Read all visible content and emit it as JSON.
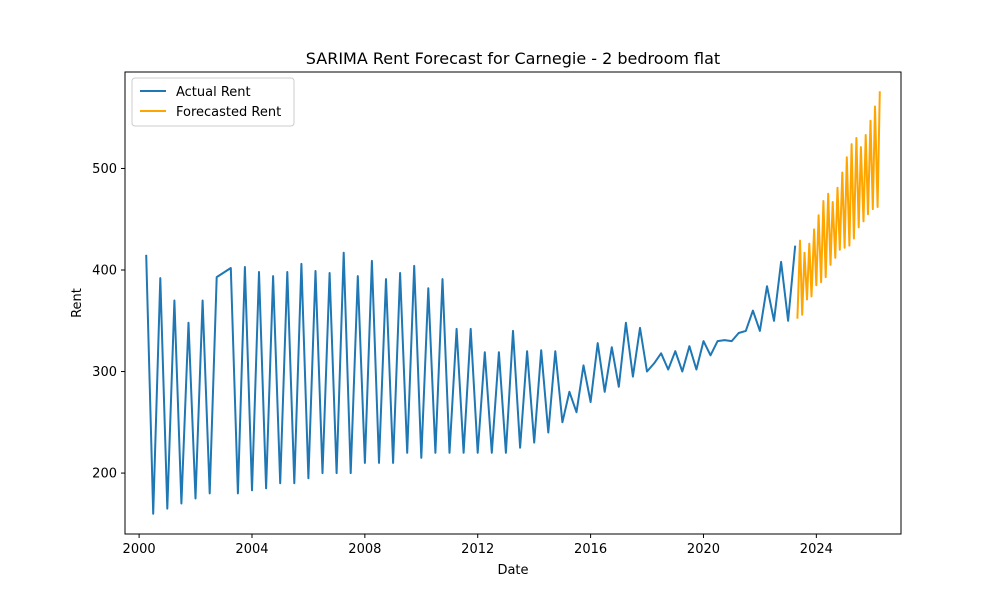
{
  "chart_data": {
    "type": "line",
    "title": "SARIMA Rent Forecast for Carnegie - 2 bedroom flat",
    "xlabel": "Date",
    "ylabel": "Rent",
    "xlim": [
      1999.5,
      2027.0
    ],
    "ylim": [
      140,
      595
    ],
    "x_ticks": [
      2000,
      2004,
      2008,
      2012,
      2016,
      2020,
      2024
    ],
    "x_tick_labels": [
      "2000",
      "2004",
      "2008",
      "2012",
      "2016",
      "2020",
      "2024"
    ],
    "y_ticks": [
      200,
      300,
      400,
      500
    ],
    "y_tick_labels": [
      "200",
      "300",
      "400",
      "500"
    ],
    "grid": false,
    "legend_position": "top-left",
    "series": [
      {
        "name": "Actual Rent",
        "color": "#1f77b4",
        "points": [
          [
            2000.25,
            415
          ],
          [
            2000.5,
            160
          ],
          [
            2000.75,
            392
          ],
          [
            2001.0,
            165
          ],
          [
            2001.25,
            370
          ],
          [
            2001.5,
            170
          ],
          [
            2001.75,
            348
          ],
          [
            2002.0,
            175
          ],
          [
            2002.25,
            370
          ],
          [
            2002.5,
            180
          ],
          [
            2002.75,
            393
          ],
          [
            2003.25,
            402
          ],
          [
            2003.5,
            180
          ],
          [
            2003.75,
            403
          ],
          [
            2004.0,
            183
          ],
          [
            2004.25,
            398
          ],
          [
            2004.5,
            185
          ],
          [
            2004.75,
            394
          ],
          [
            2005.0,
            190
          ],
          [
            2005.25,
            398
          ],
          [
            2005.5,
            190
          ],
          [
            2005.75,
            406
          ],
          [
            2006.0,
            195
          ],
          [
            2006.25,
            399
          ],
          [
            2006.5,
            200
          ],
          [
            2006.75,
            397
          ],
          [
            2007.0,
            200
          ],
          [
            2007.25,
            417
          ],
          [
            2007.5,
            200
          ],
          [
            2007.75,
            394
          ],
          [
            2008.0,
            210
          ],
          [
            2008.25,
            409
          ],
          [
            2008.5,
            210
          ],
          [
            2008.75,
            391
          ],
          [
            2009.0,
            210
          ],
          [
            2009.25,
            397
          ],
          [
            2009.5,
            220
          ],
          [
            2009.75,
            404
          ],
          [
            2010.0,
            215
          ],
          [
            2010.25,
            382
          ],
          [
            2010.5,
            220
          ],
          [
            2010.75,
            391
          ],
          [
            2011.0,
            220
          ],
          [
            2011.25,
            342
          ],
          [
            2011.5,
            220
          ],
          [
            2011.75,
            342
          ],
          [
            2012.0,
            220
          ],
          [
            2012.25,
            319
          ],
          [
            2012.5,
            220
          ],
          [
            2012.75,
            319
          ],
          [
            2013.0,
            220
          ],
          [
            2013.25,
            340
          ],
          [
            2013.5,
            225
          ],
          [
            2013.75,
            320
          ],
          [
            2014.0,
            230
          ],
          [
            2014.25,
            321
          ],
          [
            2014.5,
            240
          ],
          [
            2014.75,
            320
          ],
          [
            2015.0,
            250
          ],
          [
            2015.25,
            280
          ],
          [
            2015.5,
            260
          ],
          [
            2015.75,
            306
          ],
          [
            2016.0,
            270
          ],
          [
            2016.25,
            328
          ],
          [
            2016.5,
            280
          ],
          [
            2016.75,
            324
          ],
          [
            2017.0,
            285
          ],
          [
            2017.25,
            348
          ],
          [
            2017.5,
            295
          ],
          [
            2017.75,
            343
          ],
          [
            2018.0,
            300
          ],
          [
            2018.25,
            308
          ],
          [
            2018.5,
            318
          ],
          [
            2018.75,
            302
          ],
          [
            2019.0,
            320
          ],
          [
            2019.25,
            300
          ],
          [
            2019.5,
            325
          ],
          [
            2019.75,
            302
          ],
          [
            2020.0,
            330
          ],
          [
            2020.25,
            316
          ],
          [
            2020.5,
            330
          ],
          [
            2020.75,
            331
          ],
          [
            2021.0,
            330
          ],
          [
            2021.25,
            338
          ],
          [
            2021.5,
            340
          ],
          [
            2021.75,
            360
          ],
          [
            2022.0,
            340
          ],
          [
            2022.25,
            384
          ],
          [
            2022.5,
            350
          ],
          [
            2022.75,
            408
          ],
          [
            2023.0,
            350
          ],
          [
            2023.25,
            424
          ]
        ]
      },
      {
        "name": "Forecasted Rent",
        "color": "#ffa500",
        "points": [
          [
            2023.33,
            352
          ],
          [
            2023.42,
            429
          ],
          [
            2023.5,
            356
          ],
          [
            2023.58,
            417
          ],
          [
            2023.67,
            371
          ],
          [
            2023.75,
            426
          ],
          [
            2023.83,
            374
          ],
          [
            2023.92,
            440
          ],
          [
            2024.0,
            385
          ],
          [
            2024.08,
            454
          ],
          [
            2024.17,
            388
          ],
          [
            2024.25,
            468
          ],
          [
            2024.33,
            393
          ],
          [
            2024.42,
            475
          ],
          [
            2024.5,
            405
          ],
          [
            2024.58,
            467
          ],
          [
            2024.67,
            412
          ],
          [
            2024.75,
            481
          ],
          [
            2024.83,
            420
          ],
          [
            2024.92,
            496
          ],
          [
            2025.0,
            422
          ],
          [
            2025.08,
            511
          ],
          [
            2025.17,
            424
          ],
          [
            2025.25,
            524
          ],
          [
            2025.33,
            431
          ],
          [
            2025.42,
            530
          ],
          [
            2025.5,
            442
          ],
          [
            2025.58,
            521
          ],
          [
            2025.67,
            448
          ],
          [
            2025.75,
            533
          ],
          [
            2025.83,
            455
          ],
          [
            2025.92,
            547
          ],
          [
            2026.0,
            460
          ],
          [
            2026.08,
            561
          ],
          [
            2026.17,
            462
          ],
          [
            2026.25,
            576
          ]
        ]
      }
    ]
  }
}
